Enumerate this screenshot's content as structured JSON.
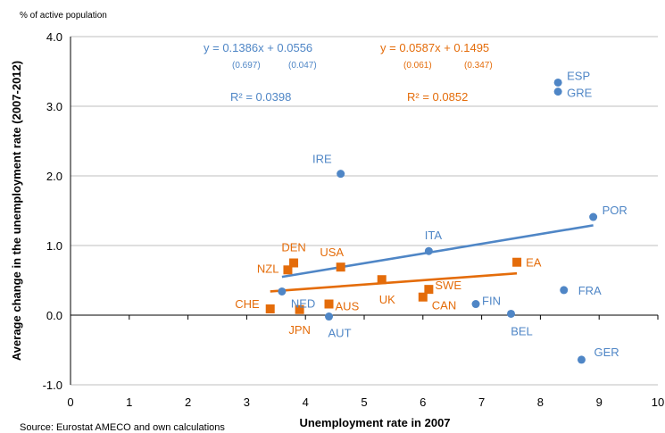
{
  "chart_data": {
    "type": "scatter",
    "unit_note": "% of active population",
    "xlabel": "Unemployment rate in 2007",
    "ylabel": "Average change in the unemployment  rate (2007-2012)",
    "source": "Source: Eurostat AMECO and own calculations",
    "xlim": [
      0,
      10
    ],
    "ylim": [
      -1.0,
      4.0
    ],
    "xticks": [
      "0",
      "1",
      "2",
      "3",
      "4",
      "5",
      "6",
      "7",
      "8",
      "9",
      "10"
    ],
    "yticks": [
      "-1.0",
      "0.0",
      "1.0",
      "2.0",
      "3.0",
      "4.0"
    ],
    "grid": "horizontal",
    "colors": {
      "blue": "#4f86c6",
      "orange": "#e46c0a",
      "axis": "#000000",
      "grid": "#bfbfbf",
      "text": "#000000"
    },
    "series": [
      {
        "marker": "circle",
        "color": "#4f86c6",
        "points": [
          {
            "label": "ESP",
            "x": 8.3,
            "y": 3.34
          },
          {
            "label": "GRE",
            "x": 8.3,
            "y": 3.21
          },
          {
            "label": "IRE",
            "x": 4.6,
            "y": 2.03
          },
          {
            "label": "POR",
            "x": 8.9,
            "y": 1.41
          },
          {
            "label": "ITA",
            "x": 6.1,
            "y": 0.92
          },
          {
            "label": "NED",
            "x": 3.6,
            "y": 0.34
          },
          {
            "label": "FRA",
            "x": 8.4,
            "y": 0.36
          },
          {
            "label": "FIN",
            "x": 6.9,
            "y": 0.16
          },
          {
            "label": "BEL",
            "x": 7.5,
            "y": 0.02
          },
          {
            "label": "AUT",
            "x": 4.4,
            "y": -0.02
          },
          {
            "label": "GER",
            "x": 8.7,
            "y": -0.64
          }
        ],
        "trendline": {
          "x0": 3.6,
          "x1": 8.9,
          "equation": "y = 0.1386x + 0.0556",
          "se_slope": "(0.697)",
          "se_intercept": "(0.047)",
          "r2": "R² = 0.0398"
        }
      },
      {
        "marker": "square",
        "color": "#e46c0a",
        "points": [
          {
            "label": "DEN",
            "x": 3.8,
            "y": 0.75
          },
          {
            "label": "NZL",
            "x": 3.7,
            "y": 0.65
          },
          {
            "label": "USA",
            "x": 4.6,
            "y": 0.69
          },
          {
            "label": "EA",
            "x": 7.6,
            "y": 0.76
          },
          {
            "label": "UK",
            "x": 5.3,
            "y": 0.51
          },
          {
            "label": "SWE",
            "x": 6.1,
            "y": 0.37
          },
          {
            "label": "CAN",
            "x": 6.0,
            "y": 0.26
          },
          {
            "label": "AUS",
            "x": 4.4,
            "y": 0.16
          },
          {
            "label": "CHE",
            "x": 3.4,
            "y": 0.09
          },
          {
            "label": "JPN",
            "x": 3.9,
            "y": 0.08
          }
        ],
        "trendline": {
          "x0": 3.4,
          "x1": 7.6,
          "equation": "y = 0.0587x + 0.1495",
          "se_slope": "(0.061)",
          "se_intercept": "(0.347)",
          "r2": "R² = 0.0852"
        }
      }
    ]
  }
}
